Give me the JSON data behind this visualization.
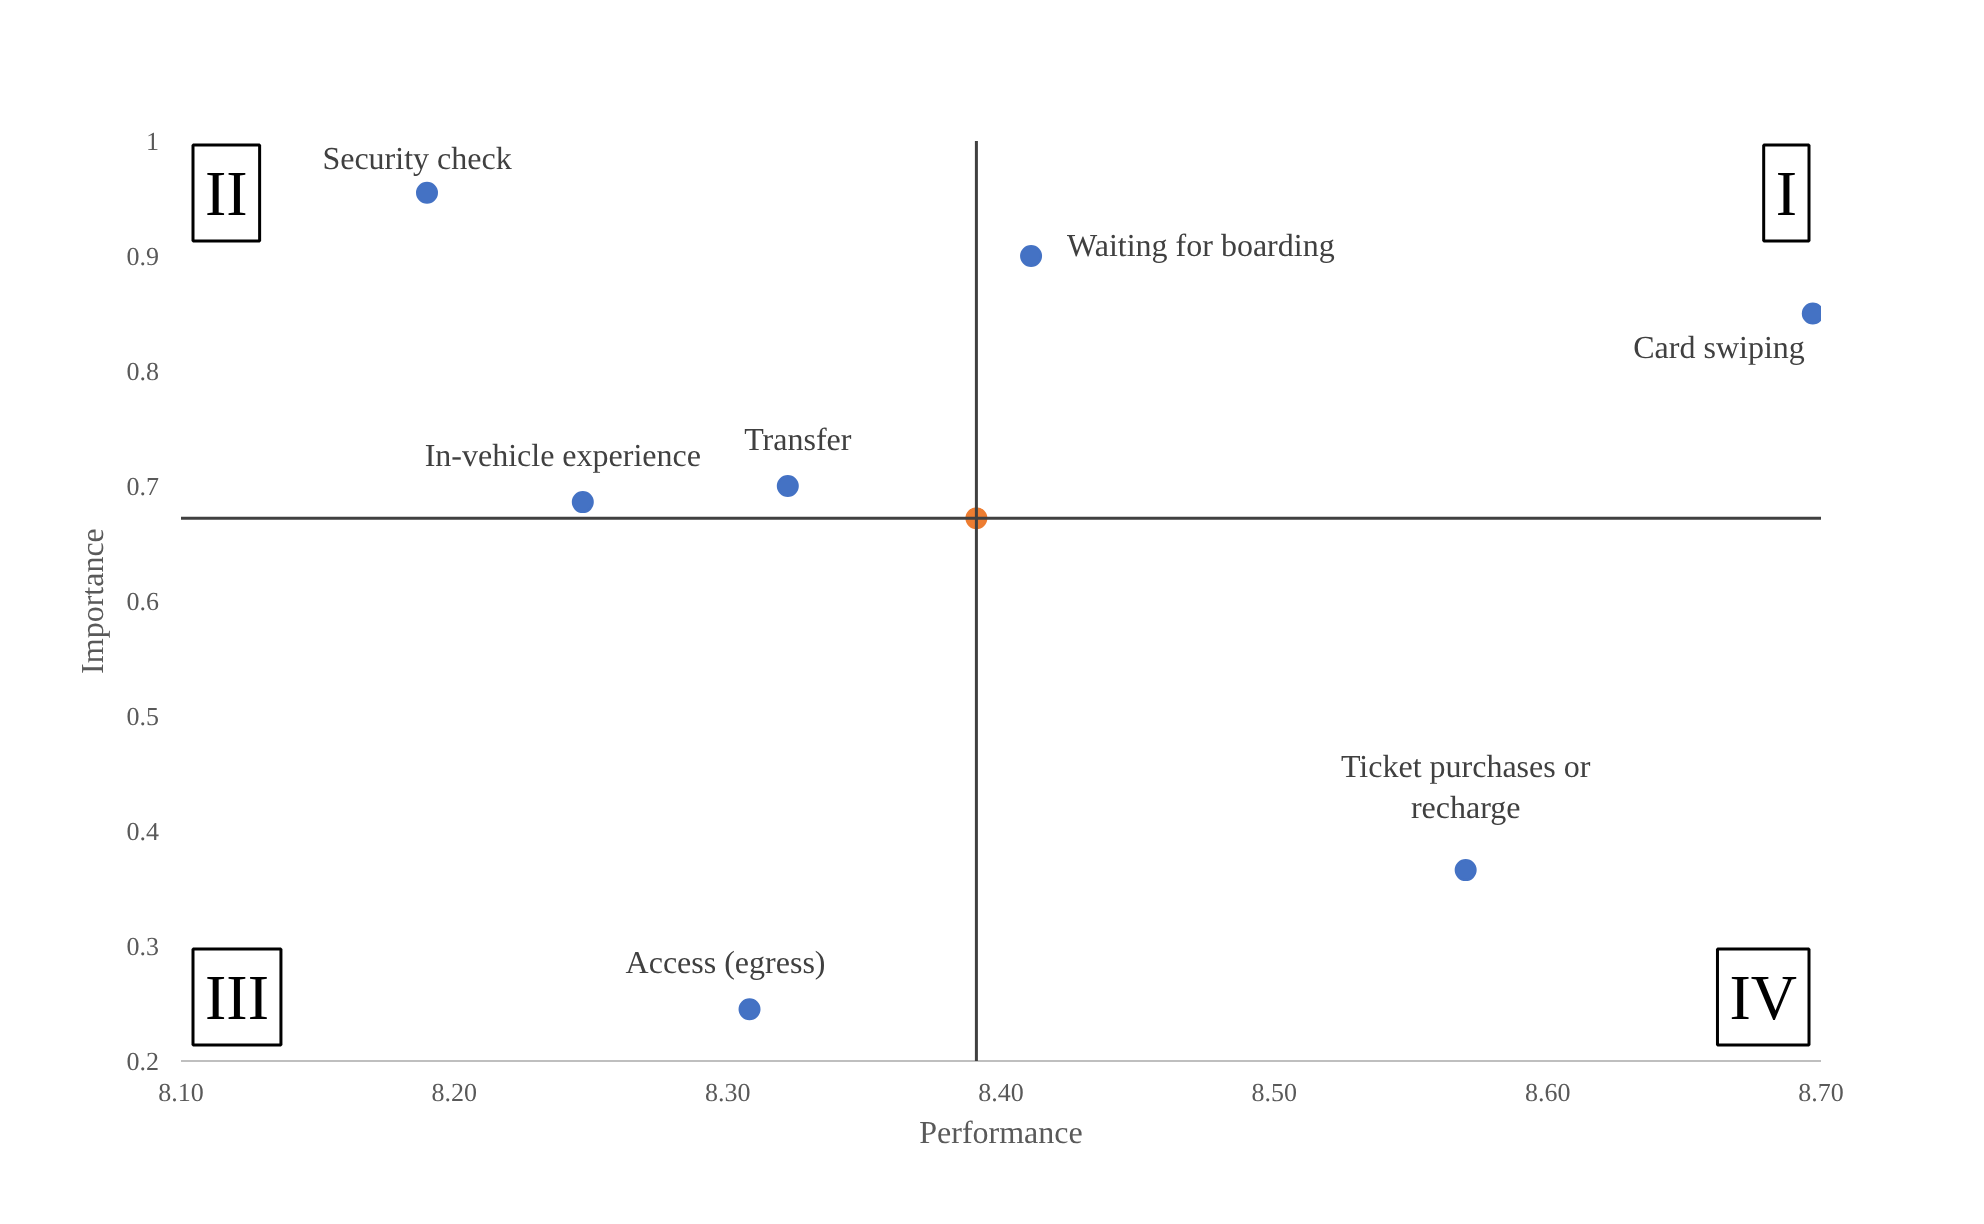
{
  "chart_data": {
    "type": "scatter",
    "xlabel": "Performance",
    "ylabel": "Importance",
    "x": [
      8.19,
      8.411,
      8.697,
      8.247,
      8.322,
      8.57,
      8.308
    ],
    "series": [
      {
        "color": "#4472c4",
        "values": [
          0.955,
          0.9,
          0.85,
          0.686,
          0.7,
          0.366,
          0.245
        ]
      },
      {
        "color": "#ed7d31",
        "x": [
          8.391
        ],
        "values": [
          0.672
        ]
      }
    ],
    "xlim": [
      8.1,
      8.7
    ],
    "ylim": [
      0.2,
      1
    ],
    "xticks": [
      {
        "value": 8.1,
        "label": "8.10"
      },
      {
        "value": 8.2,
        "label": "8.20"
      },
      {
        "value": 8.3,
        "label": "8.30"
      },
      {
        "value": 8.4,
        "label": "8.40"
      },
      {
        "value": 8.5,
        "label": "8.50"
      },
      {
        "value": 8.6,
        "label": "8.60"
      },
      {
        "value": 8.7,
        "label": "8.70"
      }
    ],
    "yticks": [
      0.2,
      0.3,
      0.4,
      0.5,
      0.6,
      0.7,
      0.8,
      0.9,
      1
    ],
    "ref_lines": [
      {
        "axis": "x",
        "value": 8.391,
        "color": "#404040"
      },
      {
        "axis": "y",
        "value": 0.672,
        "color": "#404040"
      }
    ],
    "annotations": [
      {
        "text": "Security check",
        "x": 8.19,
        "y": 0.955
      },
      {
        "text": "Waiting for boarding",
        "x": 8.411,
        "y": 0.9
      },
      {
        "text": "Card swiping",
        "x": 8.697,
        "y": 0.85
      },
      {
        "text": "In-vehicle experience",
        "x": 8.247,
        "y": 0.686
      },
      {
        "text": "Transfer",
        "x": 8.322,
        "y": 0.7
      },
      {
        "text": "Ticket purchases or\nrecharge",
        "x": 8.57,
        "y": 0.366
      },
      {
        "text": "Access (egress)",
        "x": 8.308,
        "y": 0.245
      },
      "II",
      "I",
      "III",
      "IV"
    ],
    "marker": "circle",
    "grid": false
  }
}
